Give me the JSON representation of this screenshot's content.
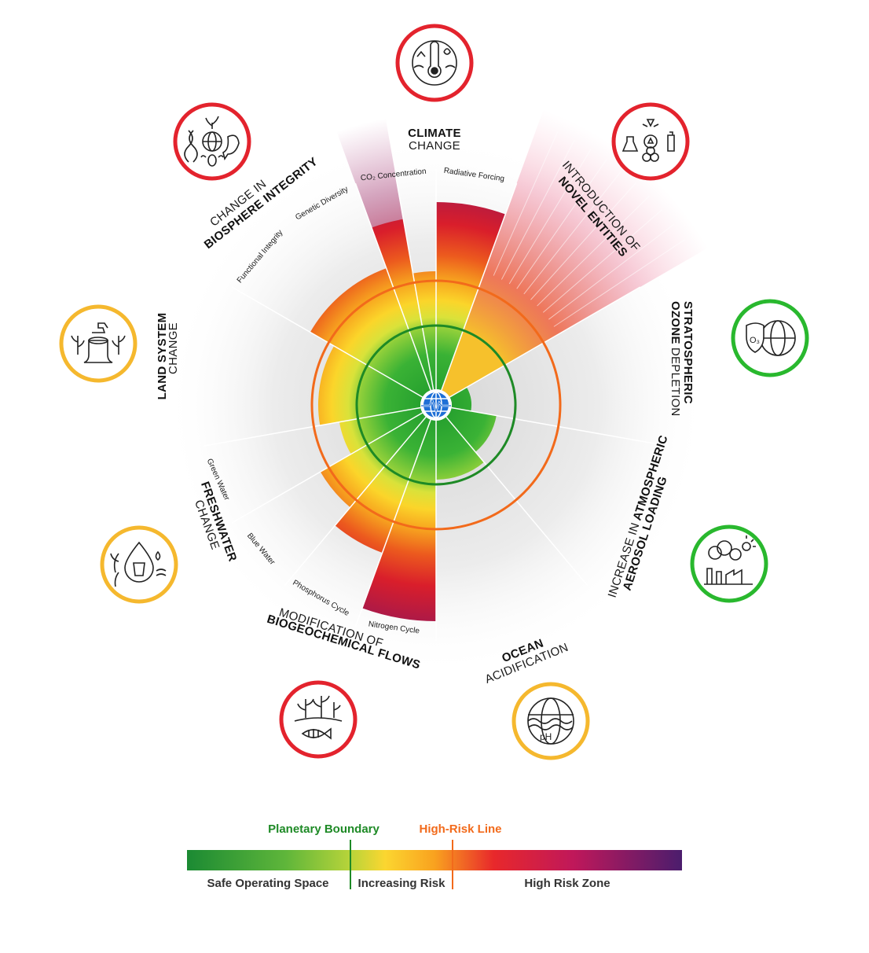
{
  "categories": {
    "climate": {
      "l1": "CLIMATE",
      "l2": "CHANGE",
      "status": "red",
      "subs": [
        "CO₂ Concentration",
        "Radiative Forcing"
      ],
      "icon": "thermometer-globe-icon"
    },
    "novel": {
      "l1": "INTRODUCTION OF",
      "l2": "NOVEL ENTITIES",
      "status": "red",
      "icon": "chemicals-radiation-icon"
    },
    "ozone": {
      "l1": "STRATOSPHERIC",
      "l2": "OZONE",
      "l3": "DEPLETION",
      "status": "green",
      "icon": "ozone-shield-icon"
    },
    "aerosol": {
      "l1": "INCREASE IN",
      "l2": "ATMOSPHERIC",
      "l3": "AEROSOL LOADING",
      "status": "green",
      "icon": "factory-smoke-icon"
    },
    "ocean": {
      "l1": "OCEAN",
      "l2": "ACIDIFICATION",
      "status": "yellow",
      "icon": "ocean-ph-icon"
    },
    "biogeo": {
      "l1": "MODIFICATION OF",
      "l2": "BIOGEOCHEMICAL FLOWS",
      "status": "red",
      "subs": [
        "Phosphorus Cycle",
        "Nitrogen Cycle"
      ],
      "icon": "plants-fish-icon"
    },
    "freshwater": {
      "l1": "FRESHWATER",
      "l2": "CHANGE",
      "status": "yellow",
      "subs": [
        "Green Water",
        "Blue Water"
      ],
      "icon": "water-drop-icon"
    },
    "land": {
      "l1": "LAND SYSTEM",
      "l2": "CHANGE",
      "status": "yellow",
      "icon": "tree-stump-icon"
    },
    "biosphere": {
      "l1": "CHANGE IN",
      "l2": "BIOSPHERE INTEGRITY",
      "status": "red",
      "subs": [
        "Functional Integrity",
        "Genetic Diversity"
      ],
      "icon": "biodiversity-icon"
    }
  },
  "center_icon": "globe-pulse-icon",
  "legend": {
    "planetary_boundary": "Planetary Boundary",
    "high_risk_line": "High-Risk Line",
    "safe": "Safe Operating Space",
    "increasing": "Increasing Risk",
    "high_zone": "High Risk Zone"
  },
  "colors": {
    "red": "#e3232d",
    "yellow": "#f5b82e",
    "green": "#29b82e",
    "boundary": "#1e8a26",
    "high_risk": "#f26a1b",
    "globe": "#1e6fd6"
  }
}
